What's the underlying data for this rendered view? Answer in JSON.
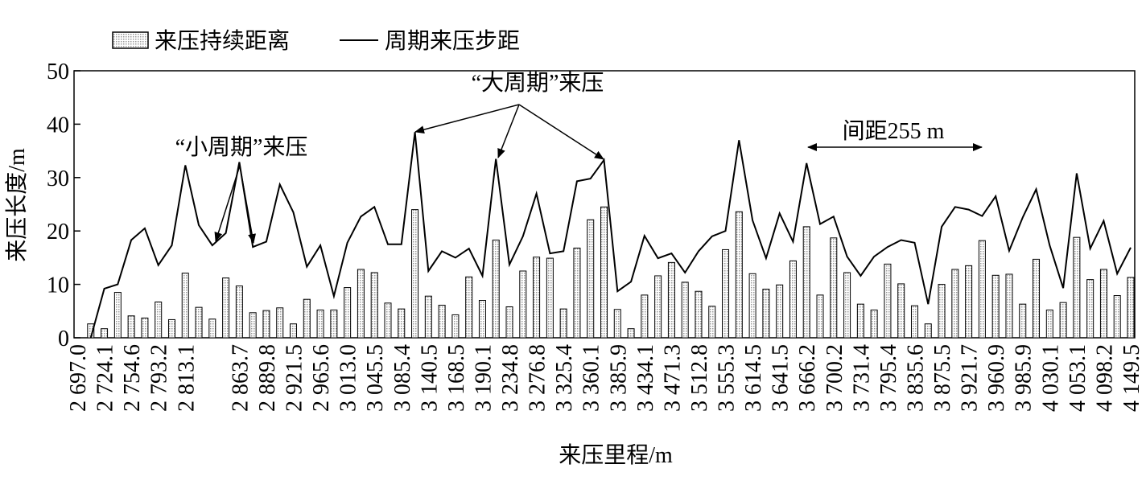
{
  "chart_data": {
    "type": "bar_line",
    "x_label": "来压里程/m",
    "y_label": "来压长度/m",
    "categories": [
      "2 697.0",
      null,
      "2 724.1",
      null,
      "2 754.6",
      null,
      "2 793.2",
      null,
      "2 813.1",
      null,
      null,
      null,
      "2 863.7",
      null,
      "2 889.8",
      null,
      "2 921.5",
      null,
      "2 965.6",
      null,
      "3 013.0",
      null,
      "3 045.5",
      null,
      "3 085.4",
      null,
      "3 140.5",
      null,
      "3 168.5",
      null,
      "3 190.1",
      null,
      "3 234.8",
      null,
      "3 276.8",
      null,
      "3 325.4",
      null,
      "3 360.1",
      null,
      "3 385.9",
      null,
      "3 434.1",
      null,
      "3 471.3",
      null,
      "3 512.8",
      null,
      "3 555.3",
      null,
      "3 614.5",
      null,
      "3 641.5",
      null,
      "3 666.2",
      null,
      "3 700.2",
      null,
      "3 731.4",
      null,
      "3 795.4",
      null,
      "3 835.6",
      null,
      "3 875.5",
      null,
      "3 921.7",
      null,
      "3 960.9",
      null,
      "3 985.9",
      null,
      "4 030.1",
      null,
      "4 053.1",
      null,
      "4 098.2",
      null,
      "4 149.5"
    ],
    "series": [
      {
        "name": "来压持续距离",
        "kind": "bar",
        "color": "#e0e0e0",
        "values": [
          null,
          2.6,
          1.7,
          8.5,
          4.1,
          3.7,
          6.7,
          3.4,
          12.1,
          5.7,
          3.5,
          11.2,
          9.7,
          4.7,
          5.1,
          5.6,
          2.6,
          7.2,
          5.2,
          5.2,
          9.4,
          12.8,
          12.2,
          6.5,
          5.4,
          24,
          7.8,
          6.1,
          4.3,
          11.4,
          7.0,
          18.3,
          5.8,
          12.5,
          15.1,
          14.9,
          5.4,
          16.8,
          22.1,
          24.5,
          5.3,
          1.7,
          8.0,
          11.6,
          14.1,
          10.4,
          8.7,
          5.9,
          16.5,
          23.6,
          12.0,
          9.1,
          9.9,
          14.4,
          20.8,
          8.0,
          18.7,
          12.2,
          6.3,
          5.2,
          13.8,
          10.1,
          6.0,
          2.6,
          10.0,
          12.8,
          13.5,
          18.2,
          11.7,
          11.9,
          6.3,
          14.7,
          5.2,
          6.6,
          18.8,
          10.9,
          12.8,
          7.9,
          11.3
        ]
      },
      {
        "name": "周期来压步距",
        "kind": "line",
        "color": "#000000",
        "values": [
          null,
          0,
          9.2,
          10,
          18.3,
          20.5,
          13.6,
          17.3,
          32.3,
          21.1,
          17.3,
          19.6,
          32.9,
          17.0,
          18.0,
          28.7,
          23.5,
          13.3,
          17.3,
          7.8,
          17.8,
          22.7,
          24.5,
          17.5,
          17.5,
          38.5,
          12.5,
          16.2,
          15.0,
          16.7,
          11.6,
          33.5,
          13.7,
          19.0,
          27.0,
          15.8,
          16.2,
          29.3,
          29.8,
          33.3,
          8.7,
          10.5,
          19.1,
          14.9,
          15.8,
          12.2,
          16.2,
          19.0,
          20.0,
          37.0,
          22.0,
          14.9,
          23.3,
          18.0,
          32.7,
          21.3,
          22.7,
          15.2,
          11.6,
          15.2,
          17.0,
          18.3,
          17.8,
          6.3,
          20.8,
          24.5,
          24.0,
          22.8,
          26.5,
          16.3,
          22.5,
          27.8,
          17.3,
          9.3,
          30.8,
          16.7,
          21.9,
          12.0,
          16.9
        ]
      }
    ],
    "ylim": [
      0,
      50
    ],
    "yticks": [
      0,
      10,
      20,
      30,
      40,
      50
    ],
    "annotations": [
      "“小周期”来压",
      "“大周期”来压",
      "间距255 m"
    ]
  }
}
